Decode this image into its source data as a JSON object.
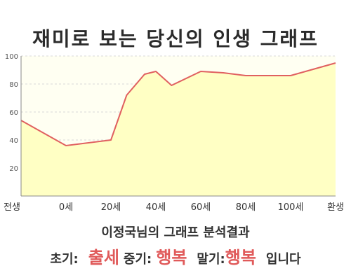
{
  "title": "재미로 보는 당신의 인생 그래프",
  "colors": {
    "line": "#e06060",
    "fill": "#ffffc4",
    "plot_bg": "#fffff2",
    "grid": "#d8d8d8",
    "axis": "#888888",
    "highlight": "#e05a5a"
  },
  "chart_data": {
    "type": "area",
    "x": [
      -20,
      0,
      20,
      27,
      35,
      40,
      47,
      60,
      70,
      80,
      100,
      120
    ],
    "values": [
      54,
      36,
      40,
      72,
      87,
      89,
      79,
      89,
      88,
      86,
      86,
      95
    ],
    "xticks": [
      -20,
      0,
      20,
      40,
      60,
      80,
      100,
      120
    ],
    "xtick_labels": [
      "전생",
      "0세",
      "20세",
      "40세",
      "60세",
      "80세",
      "100세",
      "환생"
    ],
    "yticks": [
      20,
      40,
      60,
      80,
      100
    ],
    "ytick_labels": [
      "20",
      "40",
      "60",
      "80",
      "100"
    ],
    "xlim": [
      -20,
      120
    ],
    "ylim": [
      0,
      100
    ],
    "grid": true,
    "legend": "none",
    "title": "재미로 보는 당신의 인생 그래프",
    "xlabel": "",
    "ylabel": ""
  },
  "result": {
    "heading": "이정국님의 그래프 분석결과",
    "early_label": "초기:",
    "early_value": "출세",
    "mid_label": "중기:",
    "mid_value": "행복",
    "late_label": "말기:",
    "late_value": "행복",
    "ending": "입니다"
  }
}
